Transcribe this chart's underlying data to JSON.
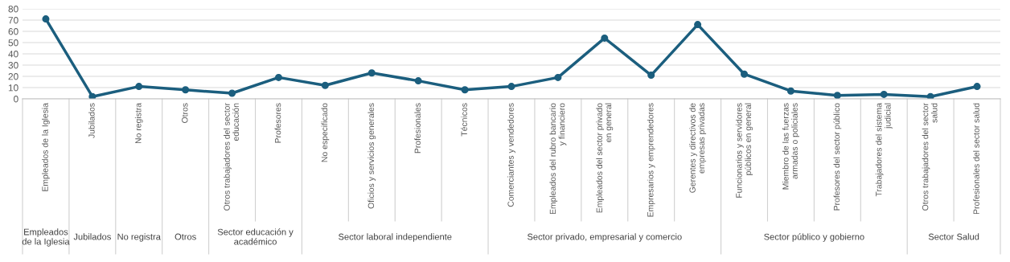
{
  "chart_data": {
    "type": "line",
    "categories": [
      "Empleados de la Iglesia",
      "Jubilados",
      "No registra",
      "Otros",
      "Otros trabajadores del sector\neducación",
      "Profesores",
      "No especificado",
      "Oficios y servicios generales",
      "Profesionales",
      "Técnicos",
      "Comerciantes y vendedores",
      "Empleados del rubro bancario\ny financiero",
      "Empleados del sector privado\nen general",
      "Empresarios y emprendedores",
      "Gerentes y directivos de\nempresas privadas",
      "Funcionarios y servidores\npúblicos en general",
      "Miembro de las fuerzas\narmadas o policiales",
      "Profesores del sector público",
      "Trabajadores del sistema\njudicial",
      "Otros trabajadores del sector\nsalud",
      "Profesionales del sector salud"
    ],
    "series": [
      {
        "color": "#1b5e7e",
        "values": [
          71,
          2,
          11,
          8,
          5,
          19,
          12,
          23,
          16,
          8,
          11,
          19,
          54,
          21,
          66,
          22,
          7,
          3,
          4,
          2,
          11
        ]
      }
    ],
    "ylim": [
      0,
      80
    ],
    "yticks": [
      0,
      10,
      20,
      30,
      40,
      50,
      60,
      70,
      80
    ],
    "grid": "y",
    "marker": "circle",
    "line_style": "solid",
    "annotations": [
      "Empleados\nde la Iglesia",
      "Jubilados",
      "No registra",
      "Otros",
      "Sector educación y\nacadémico",
      "Sector laboral independiente",
      "Sector privado, empresarial y comercio",
      "Sector público y gobierno",
      "Sector Salud"
    ]
  }
}
